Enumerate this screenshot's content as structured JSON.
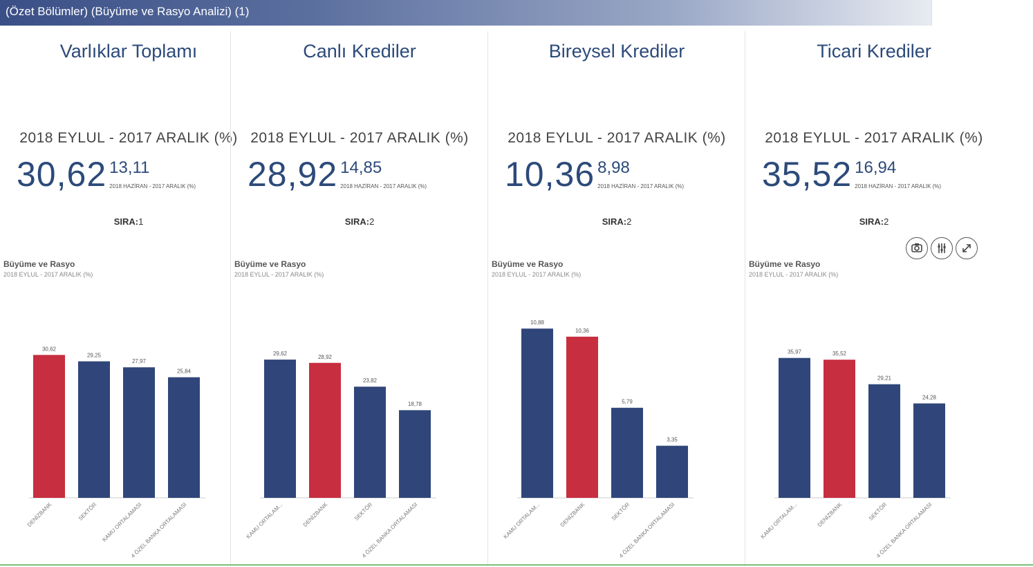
{
  "header": {
    "title": "(Özet Bölümler) (Büyüme ve Rasyo Analizi) (1)"
  },
  "colors": {
    "navy": "#30467a",
    "red": "#c72e3f",
    "axis": "#cccccc"
  },
  "toolbar": {
    "icons": [
      "camera-icon",
      "sliders-icon",
      "expand-icon"
    ]
  },
  "panels": [
    {
      "title": "Varlıklar Toplamı",
      "period": "2018 EYLUL - 2017 ARALIK (%)",
      "kpi_main": "30,62",
      "kpi_sub": "13,11",
      "kpi_note": "2018 HAZİRAN - 2017 ARALIK (%)",
      "rank_label": "SIRA:",
      "rank_value": "1",
      "chart_title": "Büyüme ve Rasyo",
      "chart_subtitle": "2018 EYLUL - 2017 ARALIK (%)"
    },
    {
      "title": "Canlı Krediler",
      "period": "2018 EYLUL - 2017 ARALIK (%)",
      "kpi_main": "28,92",
      "kpi_sub": "14,85",
      "kpi_note": "2018 HAZİRAN - 2017 ARALIK (%)",
      "rank_label": "SIRA:",
      "rank_value": "2",
      "chart_title": "Büyüme ve Rasyo",
      "chart_subtitle": "2018 EYLUL - 2017 ARALIK (%)"
    },
    {
      "title": "Bireysel Krediler",
      "period": "2018 EYLUL - 2017 ARALIK (%)",
      "kpi_main": "10,36",
      "kpi_sub": "8,98",
      "kpi_note": "2018 HAZİRAN - 2017 ARALIK (%)",
      "rank_label": "SIRA:",
      "rank_value": "2",
      "chart_title": "Büyüme ve Rasyo",
      "chart_subtitle": "2018 EYLUL - 2017 ARALIK (%)"
    },
    {
      "title": "Ticari Krediler",
      "period": "2018 EYLUL - 2017 ARALIK (%)",
      "kpi_main": "35,52",
      "kpi_sub": "16,94",
      "kpi_note": "2018 HAZİRAN - 2017 ARALIK (%)",
      "rank_label": "SIRA:",
      "rank_value": "2",
      "chart_title": "Büyüme ve Rasyo",
      "chart_subtitle": "2018 EYLUL - 2017 ARALIK (%)"
    }
  ],
  "chart_data": [
    {
      "type": "bar",
      "categories": [
        "DENİZBANK",
        "SEKTÖR",
        "KAMU ORTALAMASI",
        "4 ÖZEL BANKA ORTALAMASI"
      ],
      "values": [
        30.62,
        29.25,
        27.97,
        25.84
      ],
      "value_labels": [
        "30,62",
        "29,25",
        "27,97",
        "25,84"
      ],
      "highlight_index": 0,
      "ylim": [
        0,
        40
      ]
    },
    {
      "type": "bar",
      "categories": [
        "KAMU ORTALAM...",
        "DENİZBANK",
        "SEKTÖR",
        "4 ÖZEL BANKA ORTALAMASI"
      ],
      "values": [
        29.62,
        28.92,
        23.82,
        18.78
      ],
      "value_labels": [
        "29,62",
        "28,92",
        "23,82",
        "18,78"
      ],
      "highlight_index": 1,
      "ylim": [
        0,
        40
      ]
    },
    {
      "type": "bar",
      "categories": [
        "KAMU ORTALAM...",
        "DENİZBANK",
        "SEKTÖR",
        "4 ÖZEL BANKA ORTALAMASI"
      ],
      "values": [
        10.88,
        10.36,
        5.79,
        3.35
      ],
      "value_labels": [
        "10,88",
        "10,36",
        "5,79",
        "3,35"
      ],
      "highlight_index": 1,
      "ylim": [
        0,
        12
      ]
    },
    {
      "type": "bar",
      "categories": [
        "KAMU ORTALAM...",
        "DENİZBANK",
        "SEKTÖR",
        "4 ÖZEL BANKA ORTALAMASI"
      ],
      "values": [
        35.97,
        35.52,
        29.21,
        24.28
      ],
      "value_labels": [
        "35,97",
        "35,52",
        "29,21",
        "24,28"
      ],
      "highlight_index": 1,
      "ylim": [
        0,
        48
      ]
    }
  ]
}
